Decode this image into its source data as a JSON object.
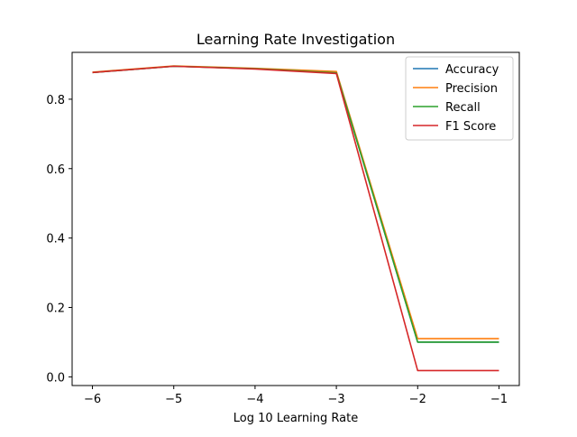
{
  "chart_data": {
    "type": "line",
    "title": "Learning Rate Investigation",
    "xlabel": "Log 10 Learning Rate",
    "ylabel": "",
    "x": [
      -6,
      -5,
      -4,
      -3,
      -2,
      -1
    ],
    "xticks": [
      -6,
      -5,
      -4,
      -3,
      -2,
      -1
    ],
    "xtick_labels": [
      "−6",
      "−5",
      "−4",
      "−3",
      "−2",
      "−1"
    ],
    "yticks": [
      0.0,
      0.2,
      0.4,
      0.6,
      0.8
    ],
    "ytick_labels": [
      "0.0",
      "0.2",
      "0.4",
      "0.6",
      "0.8"
    ],
    "xlim": [
      -6.25,
      -0.75
    ],
    "ylim": [
      -0.025,
      0.935
    ],
    "grid": false,
    "legend_position": "top-right",
    "series": [
      {
        "name": "Accuracy",
        "color": "#1f77b4",
        "values": [
          0.877,
          0.895,
          0.888,
          0.876,
          0.1,
          0.1
        ]
      },
      {
        "name": "Precision",
        "color": "#ff7f0e",
        "values": [
          0.878,
          0.896,
          0.889,
          0.88,
          0.11,
          0.11
        ]
      },
      {
        "name": "Recall",
        "color": "#2ca02c",
        "values": [
          0.877,
          0.895,
          0.888,
          0.876,
          0.1,
          0.1
        ]
      },
      {
        "name": "F1 Score",
        "color": "#d62728",
        "values": [
          0.877,
          0.895,
          0.887,
          0.874,
          0.018,
          0.018
        ]
      }
    ]
  }
}
